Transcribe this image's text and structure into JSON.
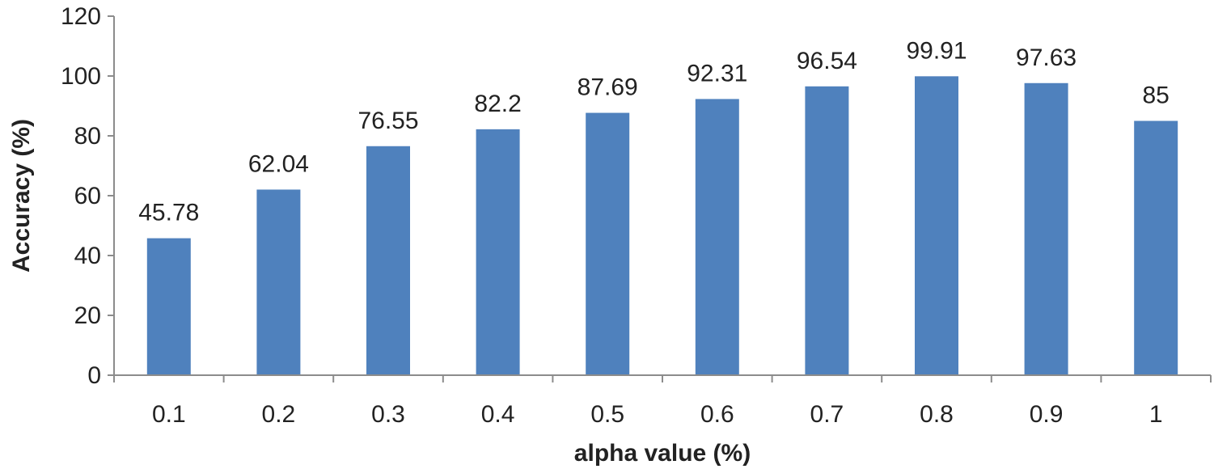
{
  "chart_data": {
    "type": "bar",
    "title": "",
    "xlabel": "alpha value (%)",
    "ylabel": "Accuracy (%)",
    "categories": [
      "0.1",
      "0.2",
      "0.3",
      "0.4",
      "0.5",
      "0.6",
      "0.7",
      "0.8",
      "0.9",
      "1"
    ],
    "values": [
      45.78,
      62.04,
      76.55,
      82.2,
      87.69,
      92.31,
      96.54,
      99.91,
      97.63,
      85
    ],
    "value_labels": [
      "45.78",
      "62.04",
      "76.55",
      "82.2",
      "87.69",
      "92.31",
      "96.54",
      "99.91",
      "97.63",
      "85"
    ],
    "ylim": [
      0,
      120
    ],
    "yticks": [
      0,
      20,
      40,
      60,
      80,
      100,
      120
    ],
    "ytick_labels": [
      "0",
      "20",
      "40",
      "60",
      "80",
      "100",
      "120"
    ],
    "grid": false,
    "legend": "none",
    "bar_color": "#4f81bd",
    "axis_color": "#8c8c8c",
    "text_color": "#222222"
  }
}
